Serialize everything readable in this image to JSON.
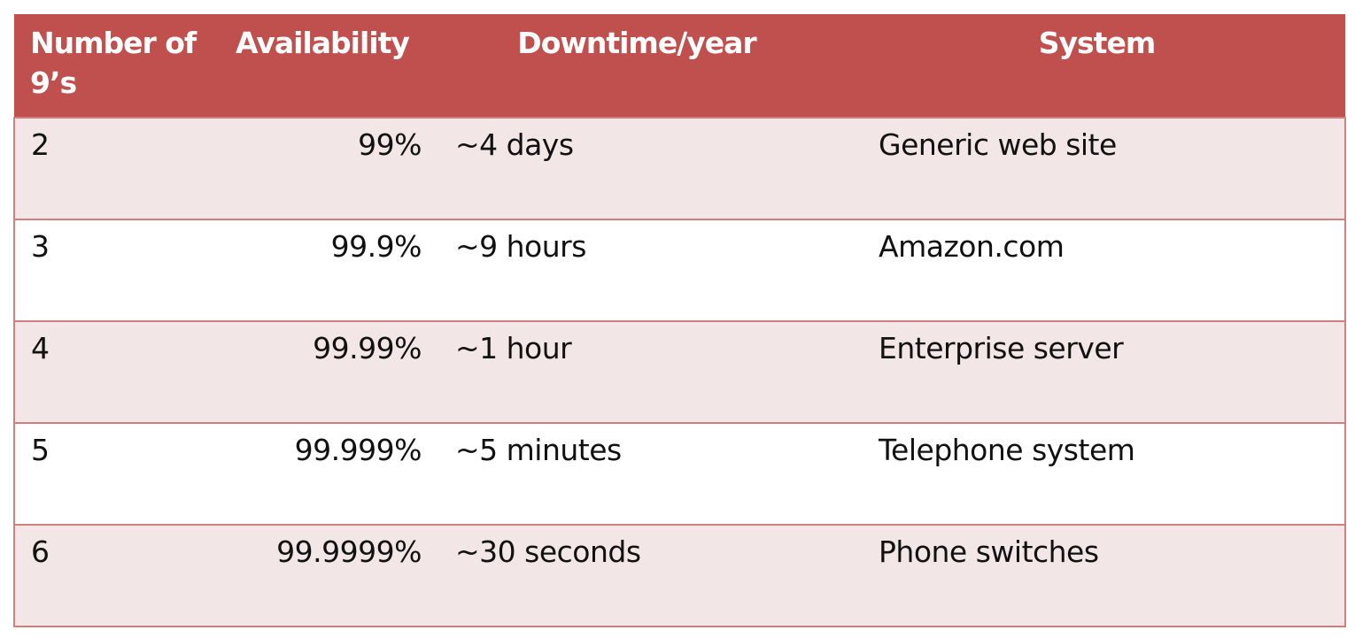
{
  "table": {
    "headers": {
      "nines": "Number of 9’s",
      "availability": "Availability",
      "downtime": "Downtime/year",
      "system": "System"
    },
    "rows": [
      {
        "nines": "2",
        "availability": "99%",
        "downtime": "~4 days",
        "system": "Generic web site"
      },
      {
        "nines": "3",
        "availability": "99.9%",
        "downtime": "~9 hours",
        "system": "Amazon.com"
      },
      {
        "nines": "4",
        "availability": "99.99%",
        "downtime": "~1 hour",
        "system": "Enterprise server"
      },
      {
        "nines": "5",
        "availability": "99.999%",
        "downtime": "~5 minutes",
        "system": "Telephone system"
      },
      {
        "nines": "6",
        "availability": "99.9999%",
        "downtime": "~30 seconds",
        "system": "Phone switches"
      }
    ],
    "colors": {
      "header_bg": "#c0504d",
      "shaded_row_bg": "#f2e6e6",
      "border": "#cf7f7d"
    }
  }
}
